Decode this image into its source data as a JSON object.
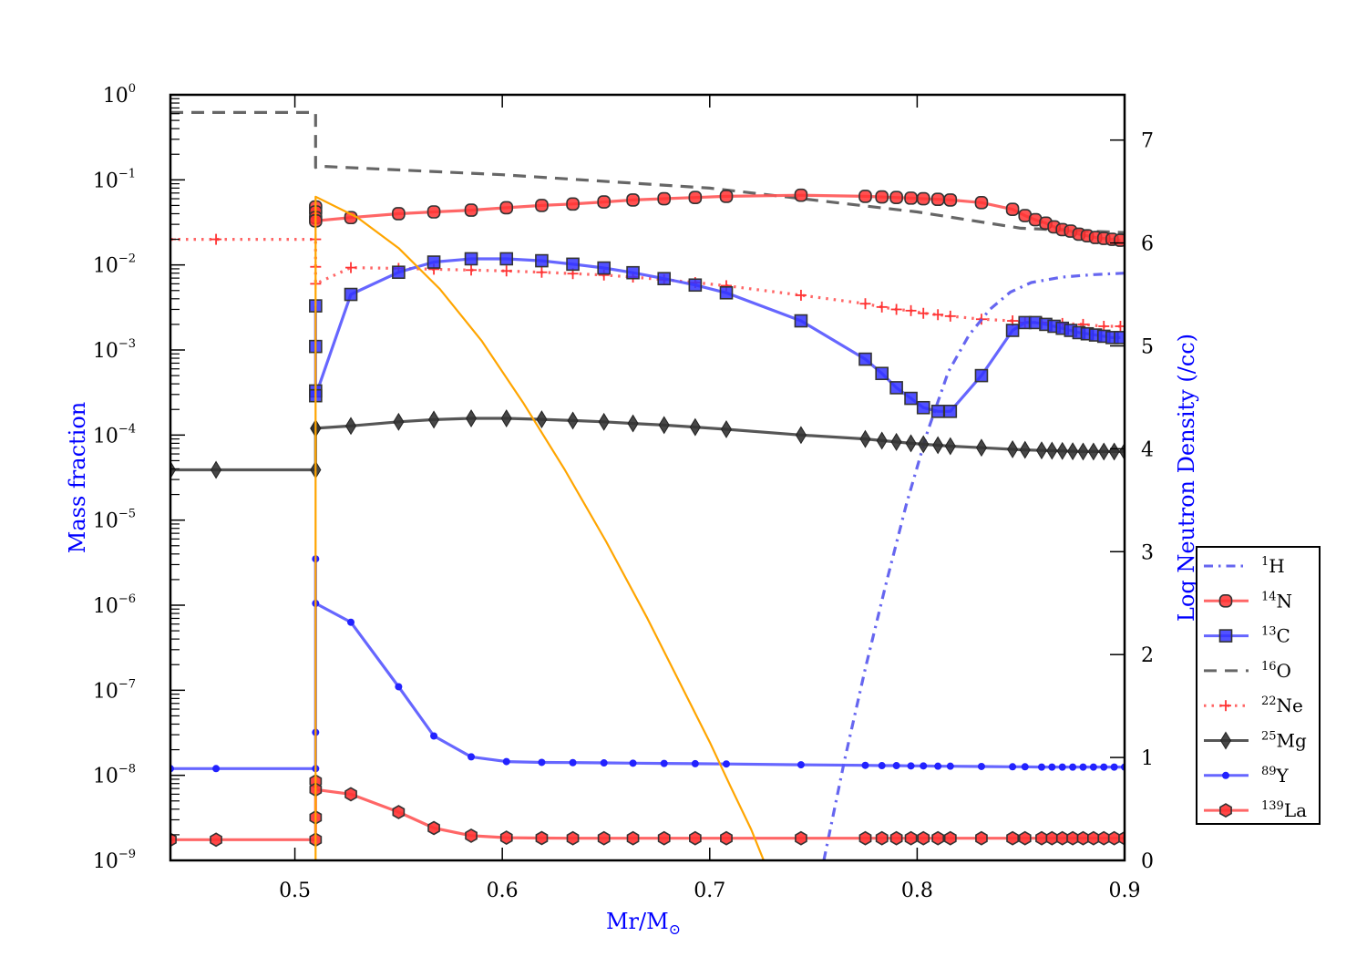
{
  "chart_data": {
    "type": "line",
    "title": "",
    "xlabel": "Mr/M",
    "xlabel_subscript": "⊙",
    "ylabel_left": "Mass fraction",
    "ylabel_right": "Log Neutron Density (/cc)",
    "xlim": [
      0.44,
      0.9
    ],
    "ylim_left": [
      1e-09,
      1
    ],
    "ylim_right": [
      0,
      7.44
    ],
    "yscale_left": "log",
    "yscale_right": "linear",
    "grid": false,
    "legend_position": "lower-right",
    "x_ticks": [
      "0.5",
      "0.6",
      "0.7",
      "0.8",
      "0.9"
    ],
    "x_tick_values": [
      0.5,
      0.6,
      0.7,
      0.8,
      0.9
    ],
    "y_left_ticks": [
      {
        "base": "10",
        "exp": "0",
        "value": 1
      },
      {
        "base": "10",
        "exp": "−1",
        "value": 0.1
      },
      {
        "base": "10",
        "exp": "−2",
        "value": 0.01
      },
      {
        "base": "10",
        "exp": "−3",
        "value": 0.001
      },
      {
        "base": "10",
        "exp": "−4",
        "value": 0.0001
      },
      {
        "base": "10",
        "exp": "−5",
        "value": 1e-05
      },
      {
        "base": "10",
        "exp": "−6",
        "value": 1e-06
      },
      {
        "base": "10",
        "exp": "−7",
        "value": 1e-07
      },
      {
        "base": "10",
        "exp": "−8",
        "value": 1e-08
      },
      {
        "base": "10",
        "exp": "−9",
        "value": 1e-09
      }
    ],
    "y_right_ticks": [
      "0",
      "1",
      "2",
      "3",
      "4",
      "5",
      "6",
      "7"
    ],
    "y_right_tick_values": [
      0,
      1,
      2,
      3,
      4,
      5,
      6,
      7
    ],
    "series": [
      {
        "name": "1H",
        "label_mass": "1",
        "label_el": "H",
        "color": "#4444ee",
        "linestyle": "dashdot",
        "marker": "none",
        "axis": "left",
        "x": [
          0.755,
          0.765,
          0.775,
          0.785,
          0.795,
          0.805,
          0.815,
          0.825,
          0.835,
          0.845,
          0.855,
          0.87,
          0.885,
          0.9
        ],
        "y": [
          1e-09,
          1.5e-08,
          1.8e-07,
          1.8e-06,
          1.6e-05,
          0.00011,
          0.00055,
          0.0015,
          0.003,
          0.0048,
          0.0062,
          0.0072,
          0.0077,
          0.008
        ]
      },
      {
        "name": "14N",
        "label_mass": "14",
        "label_el": "N",
        "color": "#ff3333",
        "linestyle": "solid",
        "marker": "circle",
        "axis": "left",
        "x": [
          0.51,
          0.51,
          0.51,
          0.51,
          0.527,
          0.55,
          0.567,
          0.585,
          0.602,
          0.619,
          0.634,
          0.649,
          0.663,
          0.678,
          0.693,
          0.708,
          0.744,
          0.775,
          0.783,
          0.79,
          0.797,
          0.803,
          0.81,
          0.816,
          0.831,
          0.846,
          0.852,
          0.857,
          0.862,
          0.866,
          0.87,
          0.874,
          0.878,
          0.882,
          0.886,
          0.89,
          0.894,
          0.898
        ],
        "y": [
          0.048,
          0.042,
          0.036,
          0.033,
          0.036,
          0.04,
          0.042,
          0.044,
          0.047,
          0.05,
          0.052,
          0.055,
          0.058,
          0.06,
          0.062,
          0.064,
          0.066,
          0.064,
          0.063,
          0.062,
          0.061,
          0.06,
          0.059,
          0.058,
          0.054,
          0.045,
          0.038,
          0.034,
          0.031,
          0.028,
          0.026,
          0.025,
          0.023,
          0.022,
          0.021,
          0.0205,
          0.02,
          0.0195
        ]
      },
      {
        "name": "13C",
        "label_mass": "13",
        "label_el": "C",
        "color": "#3333ff",
        "linestyle": "solid",
        "marker": "square",
        "axis": "left",
        "x": [
          0.51,
          0.51,
          0.51,
          0.51,
          0.527,
          0.55,
          0.567,
          0.585,
          0.602,
          0.619,
          0.634,
          0.649,
          0.663,
          0.678,
          0.693,
          0.708,
          0.744,
          0.775,
          0.783,
          0.79,
          0.797,
          0.803,
          0.81,
          0.816,
          0.831,
          0.846,
          0.852,
          0.857,
          0.862,
          0.866,
          0.87,
          0.874,
          0.878,
          0.882,
          0.886,
          0.89,
          0.894,
          0.898
        ],
        "y": [
          0.0033,
          0.0011,
          0.00033,
          0.00029,
          0.0045,
          0.0082,
          0.0108,
          0.0118,
          0.0118,
          0.0112,
          0.0102,
          0.0092,
          0.0081,
          0.0069,
          0.0058,
          0.0047,
          0.0022,
          0.00078,
          0.00053,
          0.00036,
          0.00027,
          0.00021,
          0.00019,
          0.00019,
          0.0005,
          0.0017,
          0.0021,
          0.0021,
          0.002,
          0.0019,
          0.0018,
          0.0017,
          0.0016,
          0.00155,
          0.0015,
          0.00145,
          0.0014,
          0.0014
        ]
      },
      {
        "name": "16O",
        "label_mass": "16",
        "label_el": "O",
        "color": "#555555",
        "linestyle": "dashed",
        "marker": "none",
        "axis": "left",
        "x": [
          0.44,
          0.51,
          0.51,
          0.511,
          0.6,
          0.7,
          0.8,
          0.85,
          0.9
        ],
        "y": [
          0.62,
          0.62,
          0.14,
          0.145,
          0.115,
          0.08,
          0.042,
          0.027,
          0.024
        ]
      },
      {
        "name": "22Ne",
        "label_mass": "22",
        "label_el": "Ne",
        "color": "#ff3333",
        "linestyle": "dotted",
        "marker": "plus",
        "axis": "left",
        "x": [
          0.44,
          0.462,
          0.51,
          0.51,
          0.51,
          0.527,
          0.55,
          0.567,
          0.585,
          0.602,
          0.619,
          0.634,
          0.649,
          0.663,
          0.678,
          0.693,
          0.708,
          0.744,
          0.775,
          0.783,
          0.79,
          0.797,
          0.803,
          0.81,
          0.816,
          0.831,
          0.846,
          0.852,
          0.86,
          0.87,
          0.88,
          0.89,
          0.898
        ],
        "y": [
          0.02,
          0.02,
          0.02,
          0.0095,
          0.006,
          0.0093,
          0.0091,
          0.0089,
          0.0087,
          0.0085,
          0.0082,
          0.0079,
          0.0076,
          0.0072,
          0.0067,
          0.0062,
          0.0057,
          0.0044,
          0.0035,
          0.0032,
          0.003,
          0.0029,
          0.0027,
          0.0026,
          0.0025,
          0.0023,
          0.0022,
          0.0021,
          0.0021,
          0.00205,
          0.002,
          0.0019,
          0.0019
        ]
      },
      {
        "name": "25Mg",
        "label_mass": "25",
        "label_el": "Mg",
        "color": "#333333",
        "linestyle": "solid",
        "marker": "diamond",
        "axis": "left",
        "x": [
          0.44,
          0.462,
          0.51,
          0.51,
          0.51,
          0.527,
          0.55,
          0.567,
          0.585,
          0.602,
          0.619,
          0.634,
          0.649,
          0.663,
          0.678,
          0.693,
          0.708,
          0.744,
          0.775,
          0.783,
          0.79,
          0.797,
          0.803,
          0.81,
          0.816,
          0.831,
          0.846,
          0.852,
          0.86,
          0.865,
          0.87,
          0.875,
          0.88,
          0.885,
          0.89,
          0.895,
          0.9
        ],
        "y": [
          3.9e-05,
          3.9e-05,
          3.9e-05,
          0.00012,
          0.00012,
          0.000128,
          0.000143,
          0.000152,
          0.000157,
          0.000157,
          0.000153,
          0.000148,
          0.000143,
          0.000137,
          0.000131,
          0.000124,
          0.000117,
          0.0001,
          9e-05,
          8.6e-05,
          8.3e-05,
          8e-05,
          7.8e-05,
          7.6e-05,
          7.4e-05,
          7.1e-05,
          6.8e-05,
          6.7e-05,
          6.6e-05,
          6.55e-05,
          6.5e-05,
          6.45e-05,
          6.4e-05,
          6.4e-05,
          6.4e-05,
          6.4e-05,
          6.4e-05
        ]
      },
      {
        "name": "89Y",
        "label_mass": "89",
        "label_el": "Y",
        "color": "#3333ff",
        "linestyle": "solid",
        "marker": "point",
        "axis": "left",
        "x": [
          0.44,
          0.462,
          0.51,
          0.51,
          0.51,
          0.51,
          0.527,
          0.55,
          0.567,
          0.585,
          0.602,
          0.619,
          0.634,
          0.649,
          0.663,
          0.678,
          0.693,
          0.708,
          0.744,
          0.775,
          0.783,
          0.79,
          0.797,
          0.803,
          0.81,
          0.816,
          0.831,
          0.846,
          0.852,
          0.86,
          0.865,
          0.87,
          0.875,
          0.88,
          0.885,
          0.89,
          0.895,
          0.9
        ],
        "y": [
          1.2e-08,
          1.2e-08,
          1.2e-08,
          3.2e-08,
          3.5e-06,
          1.05e-06,
          6.3e-07,
          1.1e-07,
          2.9e-08,
          1.65e-08,
          1.45e-08,
          1.42e-08,
          1.41e-08,
          1.4e-08,
          1.39e-08,
          1.38e-08,
          1.37e-08,
          1.36e-08,
          1.33e-08,
          1.31e-08,
          1.3e-08,
          1.3e-08,
          1.29e-08,
          1.29e-08,
          1.28e-08,
          1.28e-08,
          1.27e-08,
          1.26e-08,
          1.26e-08,
          1.25e-08,
          1.25e-08,
          1.25e-08,
          1.25e-08,
          1.25e-08,
          1.25e-08,
          1.25e-08,
          1.25e-08,
          1.25e-08
        ]
      },
      {
        "name": "139La",
        "label_mass": "139",
        "label_el": "La",
        "color": "#ff3333",
        "linestyle": "solid",
        "marker": "hexagon",
        "axis": "left",
        "x": [
          0.44,
          0.462,
          0.51,
          0.51,
          0.51,
          0.51,
          0.527,
          0.55,
          0.567,
          0.585,
          0.602,
          0.619,
          0.634,
          0.649,
          0.663,
          0.678,
          0.693,
          0.708,
          0.744,
          0.775,
          0.783,
          0.79,
          0.797,
          0.803,
          0.81,
          0.816,
          0.831,
          0.846,
          0.852,
          0.86,
          0.865,
          0.87,
          0.875,
          0.88,
          0.885,
          0.89,
          0.895,
          0.9
        ],
        "y": [
          1.75e-09,
          1.75e-09,
          1.75e-09,
          3.2e-09,
          8.5e-09,
          6.8e-09,
          6e-09,
          3.7e-09,
          2.4e-09,
          1.95e-09,
          1.85e-09,
          1.83e-09,
          1.82e-09,
          1.82e-09,
          1.82e-09,
          1.82e-09,
          1.82e-09,
          1.82e-09,
          1.82e-09,
          1.82e-09,
          1.82e-09,
          1.82e-09,
          1.82e-09,
          1.82e-09,
          1.82e-09,
          1.82e-09,
          1.82e-09,
          1.82e-09,
          1.82e-09,
          1.82e-09,
          1.82e-09,
          1.82e-09,
          1.82e-09,
          1.82e-09,
          1.82e-09,
          1.82e-09,
          1.82e-09,
          1.82e-09
        ]
      },
      {
        "name": "Neutron density",
        "label_mass": "",
        "label_el": "",
        "color": "#ffa500",
        "linestyle": "solid",
        "marker": "none",
        "axis": "right",
        "in_legend": false,
        "x": [
          0.51,
          0.51,
          0.53,
          0.55,
          0.57,
          0.59,
          0.61,
          0.63,
          0.65,
          0.67,
          0.69,
          0.7,
          0.71,
          0.72,
          0.726
        ],
        "y": [
          0.0,
          6.45,
          6.25,
          5.95,
          5.55,
          5.05,
          4.45,
          3.8,
          3.1,
          2.35,
          1.55,
          1.15,
          0.72,
          0.3,
          0.0
        ]
      }
    ]
  }
}
